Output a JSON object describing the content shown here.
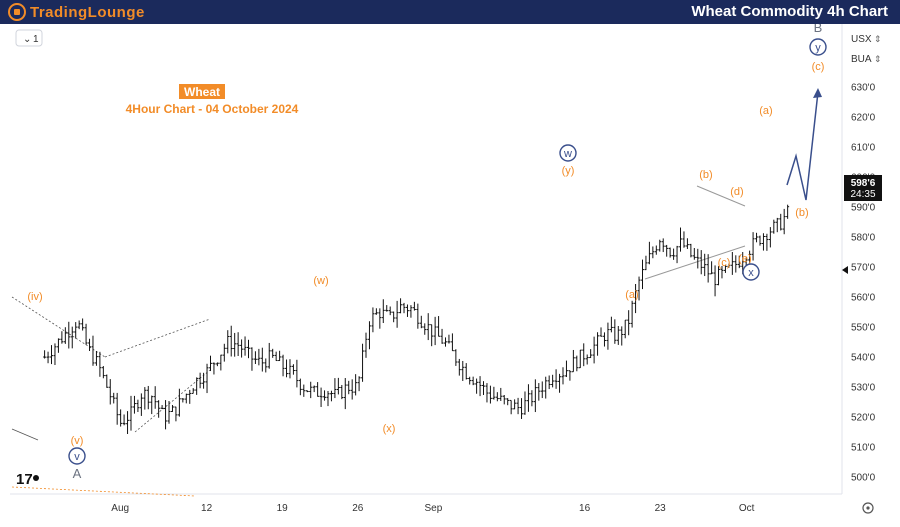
{
  "header": {
    "logo_text_1": "TradingLounge",
    "title": "Wheat Commodity 4h Chart"
  },
  "toolbar": {
    "interval_button": "1",
    "currency_label": "USX",
    "unit_label": "BUA"
  },
  "chart_title": {
    "symbol": "Wheat",
    "subtitle": "4Hour Chart - 04 October 2024"
  },
  "price_badge": {
    "price": "598'6",
    "countdown": "24:35"
  },
  "colors": {
    "orange": "#f28c28",
    "navy": "#3a4f8c",
    "header_bg": "#1b2a5c",
    "candles": "#111111"
  },
  "icons": [
    "tradingview-logo-icon",
    "settings-icon",
    "chevron-down-icon",
    "chevron-up-down-icon"
  ],
  "chart_data": {
    "type": "ohlc",
    "y_ticks": [
      "500'0",
      "510'0",
      "520'0",
      "530'0",
      "540'0",
      "550'0",
      "560'0",
      "570'0",
      "580'0",
      "590'0",
      "600'0",
      "610'0",
      "620'0",
      "630'0"
    ],
    "y_range": [
      495,
      640
    ],
    "x_ticks": [
      {
        "label": "Aug",
        "day": 4
      },
      {
        "label": "12",
        "day": 12
      },
      {
        "label": "19",
        "day": 19
      },
      {
        "label": "26",
        "day": 26
      },
      {
        "label": "Sep",
        "day": 33
      },
      {
        "label": "16",
        "day": 47
      },
      {
        "label": "23",
        "day": 54
      },
      {
        "label": "Oct",
        "day": 62
      }
    ],
    "x_domain": [
      -3,
      76
    ],
    "price_path": [
      [
        -3,
        540
      ],
      [
        -1,
        548
      ],
      [
        0,
        552
      ],
      [
        1,
        543
      ],
      [
        2,
        537
      ],
      [
        3,
        528
      ],
      [
        4,
        518
      ],
      [
        5,
        521
      ],
      [
        6,
        528
      ],
      [
        7,
        527
      ],
      [
        8,
        520
      ],
      [
        9,
        522
      ],
      [
        10,
        527
      ],
      [
        11,
        532
      ],
      [
        12,
        535
      ],
      [
        13,
        540
      ],
      [
        14,
        545
      ],
      [
        15,
        544
      ],
      [
        16,
        540
      ],
      [
        17,
        538
      ],
      [
        18,
        540
      ],
      [
        19,
        537
      ],
      [
        20,
        534
      ],
      [
        21,
        530
      ],
      [
        22,
        528
      ],
      [
        23,
        529
      ],
      [
        24,
        527
      ],
      [
        25,
        530
      ],
      [
        26,
        530
      ],
      [
        27,
        552
      ],
      [
        28,
        555
      ],
      [
        29,
        553
      ],
      [
        30,
        557
      ],
      [
        31,
        556
      ],
      [
        32,
        552
      ],
      [
        33,
        548
      ],
      [
        34,
        545
      ],
      [
        35,
        540
      ],
      [
        36,
        535
      ],
      [
        37,
        532
      ],
      [
        38,
        528
      ],
      [
        39,
        526
      ],
      [
        40,
        524
      ],
      [
        41,
        523
      ],
      [
        42,
        526
      ],
      [
        43,
        530
      ],
      [
        44,
        534
      ],
      [
        45,
        535
      ],
      [
        46,
        538
      ],
      [
        47,
        541
      ],
      [
        48,
        544
      ],
      [
        49,
        548
      ],
      [
        50,
        547
      ],
      [
        51,
        551
      ],
      [
        52,
        565
      ],
      [
        53,
        573
      ],
      [
        54,
        580
      ],
      [
        55,
        575
      ],
      [
        56,
        578
      ],
      [
        57,
        573
      ],
      [
        58,
        570
      ],
      [
        59,
        566
      ],
      [
        60,
        568
      ],
      [
        61,
        571
      ],
      [
        62,
        575
      ],
      [
        63,
        579
      ],
      [
        64,
        582
      ],
      [
        65,
        584
      ],
      [
        66,
        589
      ],
      [
        67,
        593
      ],
      [
        68,
        598
      ],
      [
        69,
        590
      ],
      [
        70,
        583
      ],
      [
        71,
        580
      ],
      [
        72,
        579
      ],
      [
        73,
        578
      ],
      [
        74,
        580
      ],
      [
        75,
        575
      ]
    ],
    "projection": [
      [
        0,
        0
      ]
    ],
    "labels": [
      {
        "text": "(iv)",
        "series": "orange"
      },
      {
        "text": "(v)",
        "series": "orange"
      },
      {
        "text": "v",
        "series": "navy-circle"
      },
      {
        "text": "A",
        "series": "gray"
      },
      {
        "text": "(w)",
        "series": "orange"
      },
      {
        "text": "(x)",
        "series": "orange"
      },
      {
        "text": "w",
        "series": "navy-circle"
      },
      {
        "text": "(y)",
        "series": "orange"
      },
      {
        "text": "(a)",
        "series": "orange"
      },
      {
        "text": "(b)",
        "series": "orange"
      },
      {
        "text": "(c)",
        "series": "orange"
      },
      {
        "text": "(d)",
        "series": "orange"
      },
      {
        "text": "(e)",
        "series": "orange"
      },
      {
        "text": "x",
        "series": "navy-circle"
      },
      {
        "text": "(a)",
        "series": "orange"
      },
      {
        "text": "(b)",
        "series": "orange"
      },
      {
        "text": "(c)",
        "series": "orange"
      },
      {
        "text": "y",
        "series": "navy-circle"
      },
      {
        "text": "B",
        "series": "gray"
      }
    ]
  }
}
